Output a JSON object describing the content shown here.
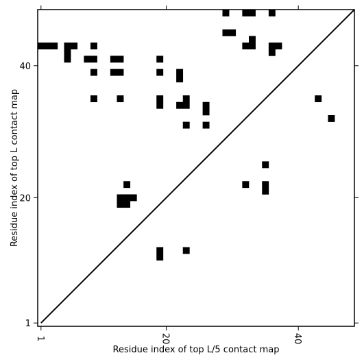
{
  "chart_data": {
    "type": "heatmap",
    "xlabel": "Residue index of top L/5 contact map",
    "ylabel": "Residue index of top L contact map",
    "xlim": [
      0.5,
      48.5
    ],
    "ylim": [
      0.5,
      48.5
    ],
    "xticks": [
      1,
      20,
      40
    ],
    "yticks": [
      1,
      20,
      40
    ],
    "grid": false,
    "diagonal": true,
    "cell_color": "#000000",
    "background_color": "#ffffff",
    "cells_lower": [
      [
        14,
        19
      ],
      [
        13,
        19
      ],
      [
        13,
        20
      ],
      [
        14,
        20
      ],
      [
        15,
        20
      ],
      [
        14,
        22
      ],
      [
        19,
        11
      ],
      [
        19,
        12
      ],
      [
        23,
        12
      ]
    ],
    "cells_upper": [
      [
        1,
        43
      ],
      [
        2,
        43
      ],
      [
        3,
        43
      ],
      [
        5,
        43
      ],
      [
        6,
        43
      ],
      [
        5,
        42
      ],
      [
        5,
        41
      ],
      [
        9,
        43
      ],
      [
        8,
        41
      ],
      [
        9,
        41
      ],
      [
        9,
        39
      ],
      [
        9,
        35
      ],
      [
        12,
        41
      ],
      [
        13,
        41
      ],
      [
        12,
        39
      ],
      [
        13,
        39
      ],
      [
        13,
        35
      ],
      [
        19,
        41
      ],
      [
        19,
        39
      ],
      [
        19,
        35
      ],
      [
        19,
        34
      ],
      [
        22,
        39
      ],
      [
        22,
        38
      ],
      [
        23,
        35
      ],
      [
        22,
        34
      ],
      [
        23,
        34
      ],
      [
        23,
        31
      ],
      [
        26,
        34
      ],
      [
        26,
        33
      ],
      [
        26,
        31
      ],
      [
        29,
        48
      ],
      [
        29,
        45
      ],
      [
        30,
        45
      ],
      [
        32,
        48
      ],
      [
        33,
        48
      ],
      [
        33,
        44
      ],
      [
        33,
        43
      ],
      [
        32,
        43
      ],
      [
        36,
        48
      ],
      [
        36,
        43
      ],
      [
        37,
        43
      ],
      [
        36,
        42
      ],
      [
        32,
        22
      ],
      [
        35,
        22
      ],
      [
        35,
        21
      ],
      [
        35,
        25
      ],
      [
        43,
        35
      ],
      [
        45,
        32
      ]
    ]
  }
}
